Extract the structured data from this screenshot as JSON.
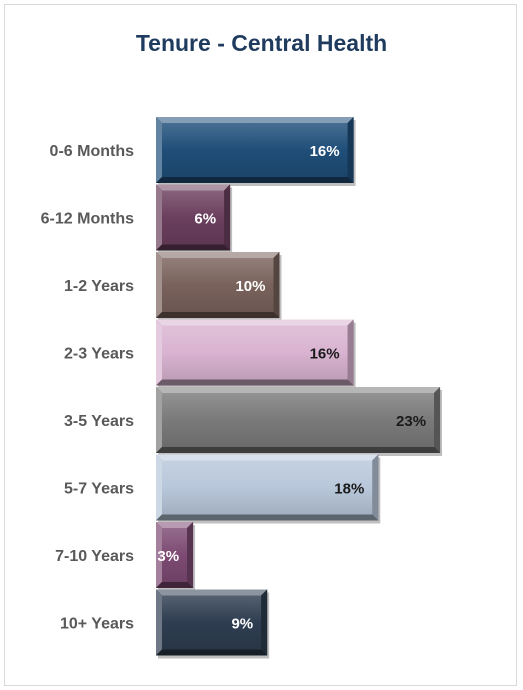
{
  "chart_data": {
    "type": "bar",
    "orientation": "horizontal",
    "title": "Tenure - Central Health",
    "xlabel": "",
    "ylabel": "",
    "categories": [
      "0-6 Months",
      "6-12 Months",
      "1-2 Years",
      "2-3 Years",
      "3-5 Years",
      "5-7 Years",
      "7-10 Years",
      "10+ Years"
    ],
    "values": [
      16,
      6,
      10,
      16,
      23,
      18,
      3,
      9
    ],
    "data_labels": [
      "16%",
      "6%",
      "10%",
      "16%",
      "23%",
      "18%",
      "3%",
      "9%"
    ],
    "unit": "%",
    "xlim": [
      0,
      28
    ],
    "grid": false,
    "legend": "none",
    "bar_colors": [
      "#1f4e79",
      "#6b3f5e",
      "#7a625c",
      "#d9b3d1",
      "#7a7a7a",
      "#b8c7da",
      "#7d4a73",
      "#2e3d50"
    ],
    "label_colors": [
      "#ffffff",
      "#ffffff",
      "#ffffff",
      "#1a1a1a",
      "#1a1a1a",
      "#1a1a1a",
      "#ffffff",
      "#ffffff"
    ]
  }
}
